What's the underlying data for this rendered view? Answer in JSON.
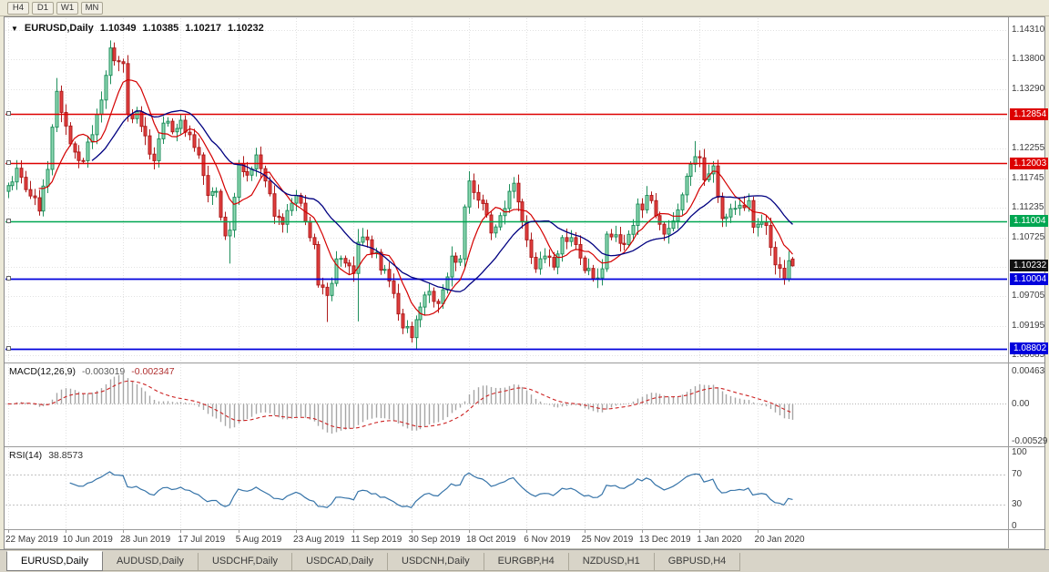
{
  "toolbar": {
    "buttons": [
      "H4",
      "D1",
      "W1",
      "MN"
    ]
  },
  "header": {
    "symbol": "EURUSD,Daily",
    "open": "1.10349",
    "high": "1.10385",
    "low": "1.10217",
    "close": "1.10232"
  },
  "tabs": [
    {
      "label": "EURUSD,Daily",
      "active": true
    },
    {
      "label": "AUDUSD,Daily",
      "active": false
    },
    {
      "label": "USDCHF,Daily",
      "active": false
    },
    {
      "label": "USDCAD,Daily",
      "active": false
    },
    {
      "label": "USDCNH,Daily",
      "active": false
    },
    {
      "label": "EURGBP,H4",
      "active": false
    },
    {
      "label": "NZDUSD,H1",
      "active": false
    },
    {
      "label": "GBPUSD,H4",
      "active": false
    }
  ],
  "chart_data": {
    "type": "candlestick",
    "symbol": "EURUSD",
    "timeframe": "Daily",
    "bars": 178,
    "ylim": [
      1.086,
      1.1445
    ],
    "x_labels": [
      "22 May 2019",
      "10 Jun 2019",
      "28 Jun 2019",
      "17 Jul 2019",
      "5 Aug 2019",
      "23 Aug 2019",
      "11 Sep 2019",
      "30 Sep 2019",
      "18 Oct 2019",
      "6 Nov 2019",
      "25 Nov 2019",
      "13 Dec 2019",
      "1 Jan 2020",
      "20 Jan 2020"
    ],
    "x_label_indices": [
      0,
      13,
      26,
      39,
      52,
      65,
      78,
      91,
      104,
      117,
      130,
      143,
      156,
      169
    ],
    "price_axis_ticks": [
      1.1431,
      1.138,
      1.1329,
      1.1278,
      1.12255,
      1.11745,
      1.11235,
      1.10725,
      1.10215,
      1.09705,
      1.09195,
      1.08685
    ],
    "close_keypoints": [
      [
        0,
        1.1162
      ],
      [
        2,
        1.1192
      ],
      [
        4,
        1.1155
      ],
      [
        7,
        1.1118
      ],
      [
        9,
        1.119
      ],
      [
        11,
        1.1325
      ],
      [
        13,
        1.1265
      ],
      [
        15,
        1.122
      ],
      [
        17,
        1.1205
      ],
      [
        19,
        1.125
      ],
      [
        21,
        1.131
      ],
      [
        23,
        1.14
      ],
      [
        24,
        1.1378
      ],
      [
        26,
        1.1373
      ],
      [
        27,
        1.1285
      ],
      [
        29,
        1.129
      ],
      [
        31,
        1.1248
      ],
      [
        33,
        1.1205
      ],
      [
        35,
        1.127
      ],
      [
        37,
        1.1255
      ],
      [
        39,
        1.1275
      ],
      [
        41,
        1.125
      ],
      [
        43,
        1.1215
      ],
      [
        45,
        1.1145
      ],
      [
        47,
        1.1152
      ],
      [
        49,
        1.1075
      ],
      [
        50,
        1.1085
      ],
      [
        52,
        1.12
      ],
      [
        54,
        1.118
      ],
      [
        56,
        1.1215
      ],
      [
        58,
        1.117
      ],
      [
        60,
        1.1109
      ],
      [
        62,
        1.1095
      ],
      [
        65,
        1.1145
      ],
      [
        67,
        1.11
      ],
      [
        69,
        1.106
      ],
      [
        70,
        1.099
      ],
      [
        72,
        1.0972
      ],
      [
        74,
        1.1035
      ],
      [
        76,
        1.1028
      ],
      [
        78,
        1.101
      ],
      [
        79,
        1.1064
      ],
      [
        80,
        1.1073
      ],
      [
        82,
        1.1045
      ],
      [
        85,
        1.1017
      ],
      [
        88,
        1.094
      ],
      [
        91,
        1.0899
      ],
      [
        92,
        1.093
      ],
      [
        95,
        1.0979
      ],
      [
        97,
        1.0958
      ],
      [
        99,
        1.1004
      ],
      [
        100,
        1.104
      ],
      [
        102,
        1.1035
      ],
      [
        103,
        1.1125
      ],
      [
        104,
        1.117
      ],
      [
        105,
        1.115
      ],
      [
        107,
        1.1131
      ],
      [
        109,
        1.108
      ],
      [
        111,
        1.111
      ],
      [
        113,
        1.1152
      ],
      [
        114,
        1.1166
      ],
      [
        116,
        1.11
      ],
      [
        117,
        1.1068
      ],
      [
        119,
        1.1018
      ],
      [
        121,
        1.104
      ],
      [
        123,
        1.1021
      ],
      [
        125,
        1.1072
      ],
      [
        128,
        1.106
      ],
      [
        130,
        1.1015
      ],
      [
        132,
        1.1001
      ],
      [
        134,
        1.1018
      ],
      [
        135,
        1.1078
      ],
      [
        137,
        1.1077
      ],
      [
        139,
        1.106
      ],
      [
        141,
        1.1093
      ],
      [
        142,
        1.113
      ],
      [
        143,
        1.112
      ],
      [
        144,
        1.1145
      ],
      [
        146,
        1.111
      ],
      [
        148,
        1.1078
      ],
      [
        149,
        1.1088
      ],
      [
        151,
        1.112
      ],
      [
        153,
        1.1178
      ],
      [
        155,
        1.1212
      ],
      [
        156,
        1.121
      ],
      [
        157,
        1.1172
      ],
      [
        159,
        1.1196
      ],
      [
        161,
        1.1105
      ],
      [
        163,
        1.1122
      ],
      [
        165,
        1.1128
      ],
      [
        167,
        1.1136
      ],
      [
        168,
        1.109
      ],
      [
        169,
        1.1095
      ],
      [
        171,
        1.1093
      ],
      [
        172,
        1.1055
      ],
      [
        173,
        1.1025
      ],
      [
        174,
        1.1019
      ],
      [
        175,
        1.1
      ],
      [
        176,
        1.1032
      ],
      [
        177,
        1.10232
      ]
    ],
    "special_bars": [
      {
        "i": 11,
        "h": 1.1348
      },
      {
        "i": 23,
        "h": 1.1412
      },
      {
        "i": 50,
        "l": 1.1027
      },
      {
        "i": 72,
        "l": 1.0926
      },
      {
        "i": 79,
        "l": 1.0927,
        "h": 1.1087
      },
      {
        "i": 92,
        "l": 1.0879
      },
      {
        "i": 155,
        "h": 1.1239
      },
      {
        "i": 175,
        "l": 1.0992
      }
    ],
    "last_bar": {
      "o": 1.10349,
      "h": 1.10385,
      "l": 1.10217,
      "c": 1.10232
    },
    "levels": [
      {
        "price": 1.12854,
        "label": "1.12854",
        "color": "#DD0000",
        "width": 1.4
      },
      {
        "price": 1.12003,
        "label": "1.12003",
        "color": "#DD0000",
        "width": 1.4
      },
      {
        "price": 1.11004,
        "label": "1.11004",
        "color": "#00A651",
        "width": 1.6
      },
      {
        "price": 1.10004,
        "label": "1.10004",
        "color": "#0000DC",
        "width": 1.8
      },
      {
        "price": 1.08802,
        "label": "1.08802",
        "color": "#0000DC",
        "width": 1.8
      }
    ],
    "current_price": {
      "value": 1.10232,
      "label": "1.10232",
      "box_color": "#111111"
    },
    "candle_colors": {
      "up_fill": "#90DAB4",
      "up_border": "#1F8F5C",
      "down_fill": "#E33E3E",
      "down_border": "#AE1C1C"
    },
    "moving_averages": [
      {
        "name": "fast",
        "period": 8,
        "color": "#D40000"
      },
      {
        "name": "slow",
        "period": 20,
        "color": "#000080"
      }
    ],
    "macd": {
      "label": "MACD(12,26,9)",
      "value_main": "-0.003019",
      "value_signal": "-0.002347",
      "fast": 12,
      "slow": 26,
      "signal": 9,
      "axis_ticks": [
        0.00463,
        0,
        -0.00529
      ],
      "histogram_color": "#A6A6A6",
      "signal_color": "#CC2222"
    },
    "rsi": {
      "label": "RSI(14)",
      "value": "38.8573",
      "period": 14,
      "axis_ticks": [
        100,
        70,
        30,
        0
      ],
      "levels": [
        70,
        30
      ],
      "color": "#3573A8"
    }
  }
}
